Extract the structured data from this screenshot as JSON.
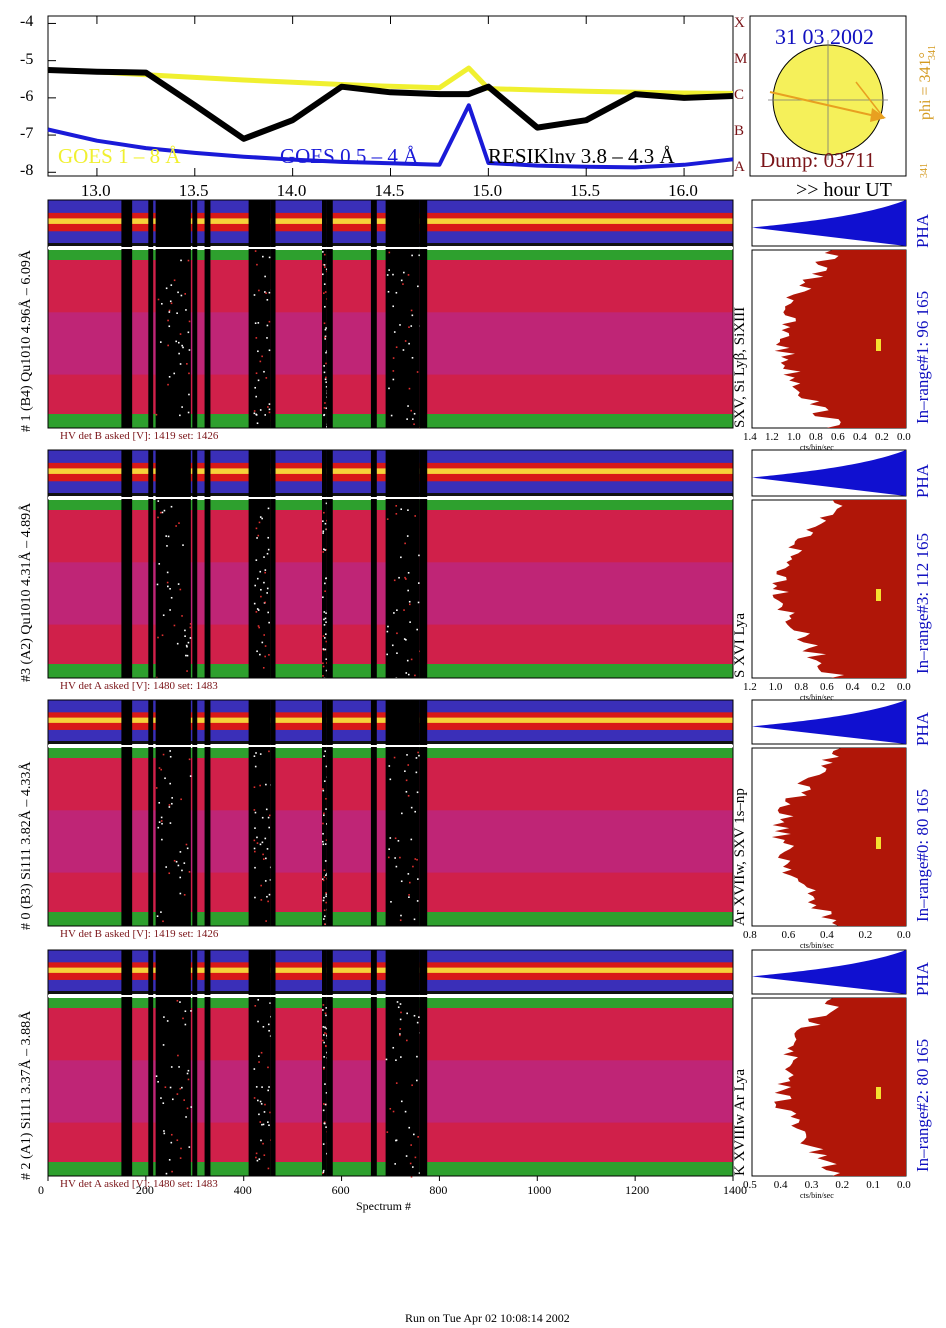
{
  "footer_text": "Run on Tue Apr 02 10:08:14 2002",
  "hour_ut_label": ">> hour UT",
  "hour_ticks": [
    "13.0",
    "13.5",
    "14.0",
    "14.5",
    "15.0",
    "15.5",
    "16.0"
  ],
  "goes": {
    "yticks": [
      "-4",
      "-5",
      "-6",
      "-7",
      "-8"
    ],
    "class_letters": [
      "A",
      "B",
      "C",
      "M",
      "X"
    ],
    "legend": {
      "goes_1_8": "GOES 1 – 8 Å",
      "goes_05_4": "GOES 0.5 – 4 Å",
      "resik": "RESIKlnv 3.8 – 4.3 Å"
    }
  },
  "sun": {
    "date": "31 03 2002",
    "phi": "phi = 341°",
    "phi_sub": "341",
    "phi_small": "341",
    "dump": "Dump: 03711"
  },
  "detectors": [
    {
      "side_label": "# 1  (B4)  Qu1010  4.96Å – 6.09Å",
      "lines": "SXV, Si Lyβ, SiXIII",
      "range": "In–range#1:   96 165",
      "hv": "HV det B asked [V]:  1419  set:   1426",
      "pha": "PHA",
      "ticks": [
        "1.4",
        "1.2",
        "1.0",
        "0.8",
        "0.6",
        "0.4",
        "0.2",
        "0.0"
      ]
    },
    {
      "side_label": "#3  (A2)  Qu1010  4.31Å – 4.89Å",
      "lines": "S XVI Lya",
      "range": "In–range#3:   112 165",
      "hv": "HV det A asked [V]:  1480  set:   1483",
      "pha": "PHA",
      "ticks": [
        "1.2",
        "1.0",
        "0.8",
        "0.6",
        "0.4",
        "0.2",
        "0.0"
      ]
    },
    {
      "side_label": "# 0  (B3)  Si111  3.82Å – 4.33Å",
      "lines": "Ar XVIIw,  SXV  1s–np",
      "range": "In–range#0:   80 165",
      "hv": "HV det B asked [V]:  1419  set:   1426",
      "pha": "PHA",
      "ticks": [
        "0.8",
        "0.6",
        "0.4",
        "0.2",
        "0.0"
      ]
    },
    {
      "side_label": "# 2  (A1)  Si111  3.37Å – 3.88Å",
      "lines": "K XVIIIw  Ar Lya",
      "range": "In–range#2:   80 165",
      "hv": "HV det A asked [V]:  1480  set:   1483",
      "pha": "PHA",
      "ticks": [
        "0.5",
        "0.4",
        "0.3",
        "0.2",
        "0.1",
        "0.0"
      ]
    }
  ],
  "cts_label": "cts/bin/sec",
  "spectrum_axis": {
    "label": "Spectrum #",
    "ticks": [
      "0",
      "200",
      "400",
      "600",
      "800",
      "1000",
      "1200",
      "1400"
    ]
  },
  "colors": {
    "goes_1_8": "#f0f030",
    "goes_05_4": "#1a1ad8",
    "resik": "#000000",
    "sun_fill": "#f5f05a",
    "phi_arrow": "#e8a020",
    "label_red": "#7a1418",
    "label_blue": "#1010c0",
    "hist_red": "#b01608",
    "pha_blue": "#1010d0",
    "hv_text": "#7a1418"
  },
  "chart_data": {
    "type": "line",
    "title": "",
    "xlabel": "",
    "ylabel": "",
    "x": [
      12.75,
      13.0,
      13.25,
      13.5,
      13.75,
      14.0,
      14.25,
      14.5,
      14.75,
      14.9,
      15.0,
      15.25,
      15.5,
      15.75,
      16.0,
      16.25
    ],
    "ylim": [
      -8.1,
      -3.8
    ],
    "series": [
      {
        "name": "GOES 1 – 8 Å",
        "values": [
          -5.25,
          -5.3,
          -5.38,
          -5.45,
          -5.52,
          -5.58,
          -5.64,
          -5.69,
          -5.73,
          -5.2,
          -5.75,
          -5.79,
          -5.82,
          -5.85,
          -5.87,
          -5.88
        ]
      },
      {
        "name": "GOES 0.5 – 4 Å",
        "values": [
          -6.85,
          -7.15,
          -7.35,
          -7.48,
          -7.58,
          -7.66,
          -7.72,
          -7.76,
          -7.8,
          -6.2,
          -7.75,
          -7.82,
          -7.85,
          -7.87,
          -7.8,
          -7.65
        ]
      },
      {
        "name": "RESIKlnv 3.8 – 4.3 Å",
        "values": [
          -5.25,
          -5.3,
          -5.32,
          -6.2,
          -7.1,
          -6.6,
          -5.7,
          -5.85,
          -5.9,
          -5.9,
          -5.7,
          -6.8,
          -6.6,
          -5.9,
          -6.0,
          -5.95
        ]
      }
    ]
  }
}
